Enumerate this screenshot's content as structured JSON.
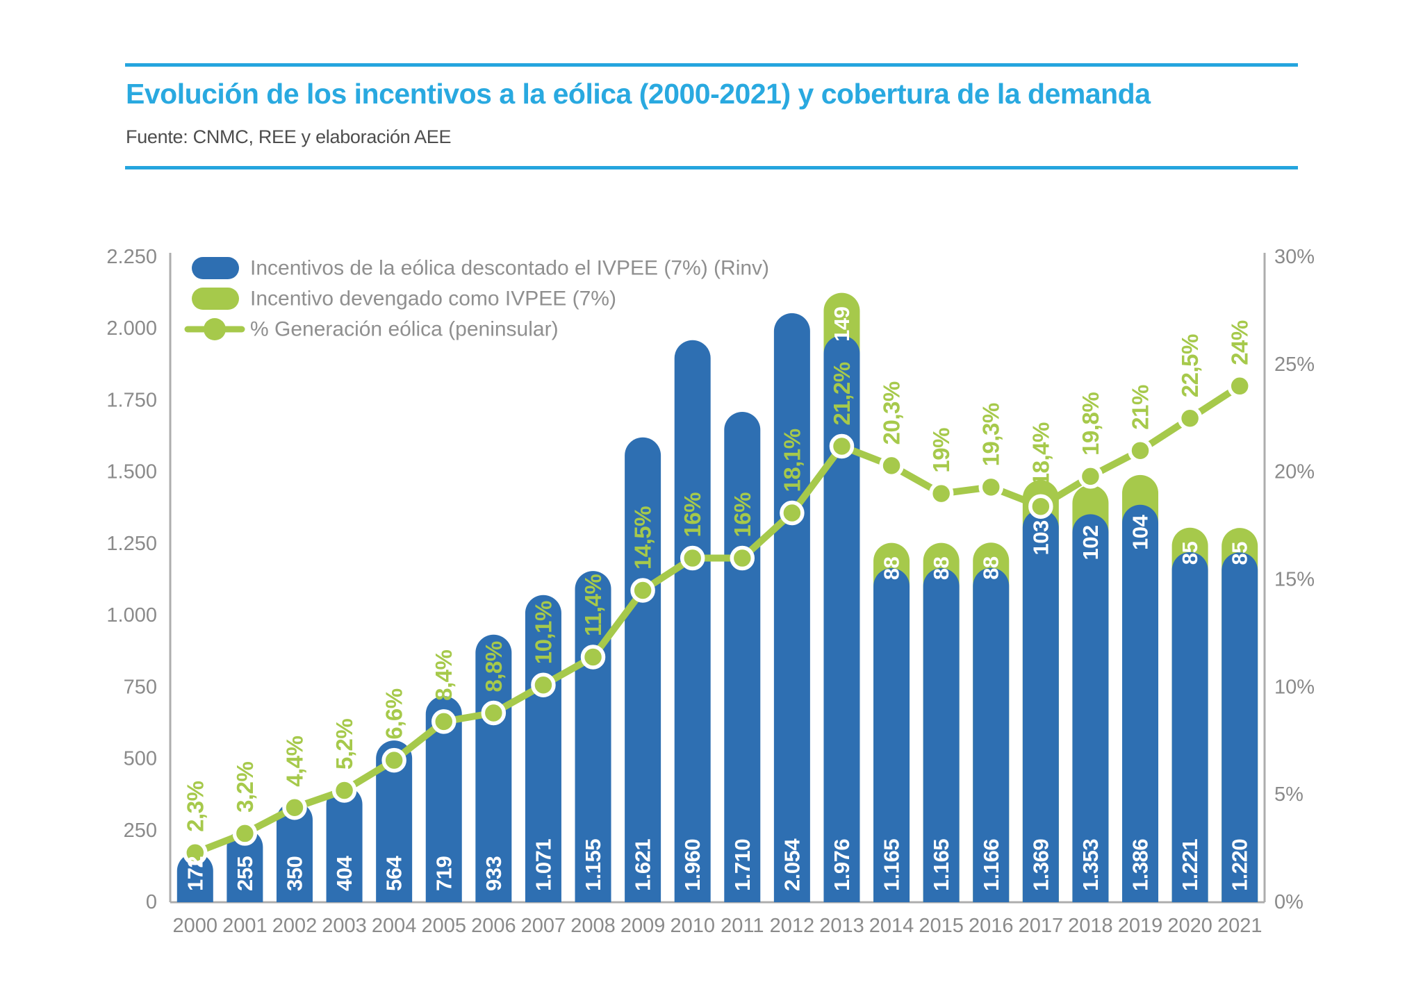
{
  "header": {
    "title": "Evolución de los incentivos a la eólica (2000-2021) y cobertura de la demanda",
    "source": "Fuente: CNMC, REE y elaboración AEE",
    "accent_color": "#25A5DE"
  },
  "legend": {
    "items": [
      {
        "label": "Incentivos de la eólica descontado el IVPEE (7%) (Rinv)",
        "swatch": "bar",
        "color": "#2E6FB2"
      },
      {
        "label": "Incentivo devengado como IVPEE (7%)",
        "swatch": "bar",
        "color": "#A6C94B"
      },
      {
        "label": "% Generación eólica (peninsular)",
        "swatch": "line-dot",
        "color": "#A6C94B"
      }
    ]
  },
  "chart_data": {
    "type": "bar",
    "title": "Evolución de los incentivos a la eólica (2000-2021) y cobertura de la demanda",
    "categories": [
      "2000",
      "2001",
      "2002",
      "2003",
      "2004",
      "2005",
      "2006",
      "2007",
      "2008",
      "2009",
      "2010",
      "2011",
      "2012",
      "2013",
      "2014",
      "2015",
      "2016",
      "2017",
      "2018",
      "2019",
      "2020",
      "2021"
    ],
    "series": [
      {
        "name": "Incentivos de la eólica descontado el IVPEE (7%) (Rinv)",
        "type": "bar",
        "axis": "left",
        "color": "#2E6FB2",
        "values": [
          172,
          255,
          350,
          404,
          564,
          719,
          933,
          1071,
          1155,
          1621,
          1960,
          1710,
          2054,
          1976,
          1165,
          1165,
          1166,
          1369,
          1353,
          1386,
          1221,
          1220
        ],
        "labels": [
          "172",
          "255",
          "350",
          "404",
          "564",
          "719",
          "933",
          "1.071",
          "1.155",
          "1.621",
          "1.960",
          "1.710",
          "2.054",
          "1.976",
          "1.165",
          "1.165",
          "1.166",
          "1.369",
          "1.353",
          "1.386",
          "1.221",
          "1.220"
        ]
      },
      {
        "name": "Incentivo devengado como IVPEE (7%)",
        "type": "bar-stacked-cap",
        "axis": "left",
        "color": "#A6C94B",
        "values": [
          null,
          null,
          null,
          null,
          null,
          null,
          null,
          null,
          null,
          null,
          null,
          null,
          null,
          149,
          88,
          88,
          88,
          103,
          102,
          104,
          85,
          85
        ],
        "labels": [
          null,
          null,
          null,
          null,
          null,
          null,
          null,
          null,
          null,
          null,
          null,
          null,
          null,
          "149",
          "88",
          "88",
          "88",
          "103",
          "102",
          "104",
          "85",
          "85"
        ]
      },
      {
        "name": "% Generación eólica (peninsular)",
        "type": "line",
        "axis": "right",
        "color": "#A6C94B",
        "values": [
          2.3,
          3.2,
          4.4,
          5.2,
          6.6,
          8.4,
          8.8,
          10.1,
          11.4,
          14.5,
          16,
          16,
          18.1,
          21.2,
          20.3,
          19,
          19.3,
          18.4,
          19.8,
          21,
          22.5,
          24
        ],
        "labels": [
          "2,3%",
          "3,2%",
          "4,4%",
          "5,2%",
          "6,6%",
          "8,4%",
          "8,8%",
          "10,1%",
          "11,4%",
          "14,5%",
          "16%",
          "16%",
          "18,1%",
          "21,2%",
          "20,3%",
          "19%",
          "19,3%",
          "18,4%",
          "19,8%",
          "21%",
          "22,5%",
          "24%"
        ]
      }
    ],
    "left_axis": {
      "min": 0,
      "max": 2250,
      "ticks": [
        "0",
        "250",
        "500",
        "750",
        "1.000",
        "1.250",
        "1.500",
        "1.750",
        "2.000",
        "2.250"
      ]
    },
    "right_axis": {
      "min": 0,
      "max": 30,
      "ticks": [
        "0%",
        "5%",
        "10%",
        "15%",
        "20%",
        "25%",
        "30%"
      ]
    },
    "grid": false,
    "legend_position": "top-left-inside",
    "colors": {
      "bar_blue": "#2E6FB2",
      "green": "#A6C94B",
      "axis_gray": "#ADADAD",
      "label_gray": "#8A8A8A",
      "value_text": "#FFFFFF"
    }
  }
}
